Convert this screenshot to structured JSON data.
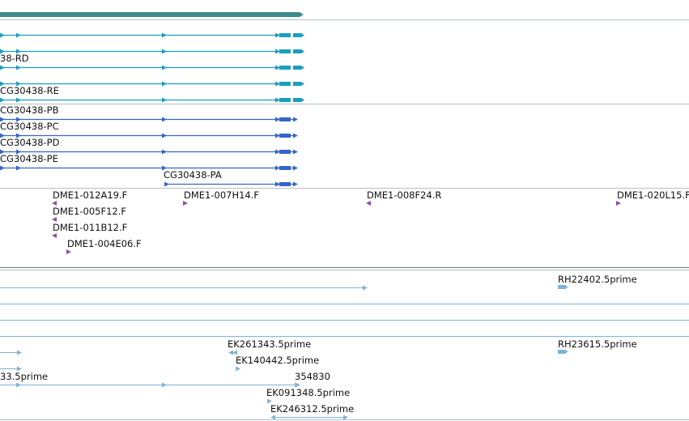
{
  "colors": {
    "gene": "#3d8a8a",
    "transcript_r": "#1a9fbf",
    "transcript_p": "#3566c8",
    "primer": "#8a4fb0",
    "est": "#7fb3d6",
    "divider": "#9aa8b0"
  },
  "transcripts_r": [
    {
      "label": ""
    },
    {
      "label": ""
    },
    {
      "label": "38-RD"
    },
    {
      "label": ""
    },
    {
      "label": "CG30438-RE"
    }
  ],
  "transcripts_p": [
    {
      "label": "CG30438-PB"
    },
    {
      "label": "CG30438-PC"
    },
    {
      "label": "CG30438-PD"
    },
    {
      "label": "CG30438-PE"
    },
    {
      "label": "CG30438-PA"
    }
  ],
  "primers": [
    {
      "label": "DME1-012A19.F",
      "dir": "left"
    },
    {
      "label": "DME1-005F12.F",
      "dir": "left"
    },
    {
      "label": "DME1-011B12.F",
      "dir": "left"
    },
    {
      "label": "DME1-004E06.F",
      "dir": "right"
    },
    {
      "label": "DME1-007H14.F",
      "dir": "right"
    },
    {
      "label": "DME1-008F24.R",
      "dir": "left"
    },
    {
      "label": "DME1-020L15.F",
      "dir": "right"
    }
  ],
  "ests": [
    {
      "label": "RH22402.5prime"
    },
    {
      "label": "EK261343.5prime"
    },
    {
      "label": "RH23615.5prime"
    },
    {
      "label": "EK140442.5prime"
    },
    {
      "label": "33.5prime"
    },
    {
      "label": "354830"
    },
    {
      "label": "EK091348.5prime"
    },
    {
      "label": "EK246312.5prime"
    }
  ]
}
